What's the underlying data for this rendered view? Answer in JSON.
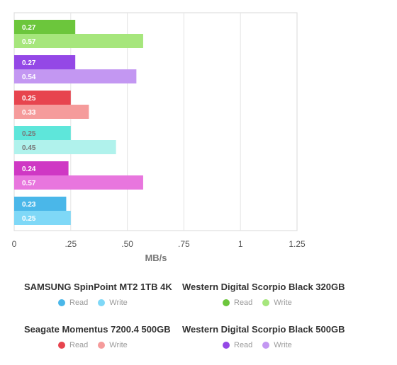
{
  "chart_data": {
    "type": "bar",
    "orientation": "horizontal",
    "xlabel": "MB/s",
    "xlim": [
      0,
      1.25
    ],
    "xticks": [
      "0",
      ".25",
      ".50",
      ".75",
      "1",
      "1.25"
    ],
    "grid": true,
    "groups": [
      {
        "name": "Western Digital Scorpio Black 320GB",
        "read": 0.27,
        "write": 0.57,
        "read_label": "0.27",
        "write_label": "0.57",
        "read_color": "#6cc63c",
        "write_color": "#a6e67c",
        "label_color": "#ffffff"
      },
      {
        "name": "Western Digital Scorpio Black 500GB",
        "read": 0.27,
        "write": 0.54,
        "read_label": "0.27",
        "write_label": "0.54",
        "read_color": "#9448e6",
        "write_color": "#c397f2",
        "label_color": "#ffffff"
      },
      {
        "name": "Seagate Momentus 7200.4 500GB",
        "read": 0.25,
        "write": 0.33,
        "read_label": "0.25",
        "write_label": "0.33",
        "read_color": "#e7444e",
        "write_color": "#f59b9b",
        "label_color": "#ffffff"
      },
      {
        "name": "",
        "read": 0.25,
        "write": 0.45,
        "read_label": "0.25",
        "write_label": "0.45",
        "read_color": "#5ee6da",
        "write_color": "#b0f2ec",
        "label_color": "#777777"
      },
      {
        "name": "",
        "read": 0.24,
        "write": 0.57,
        "read_label": "0.24",
        "write_label": "0.57",
        "read_color": "#cf38c4",
        "write_color": "#e876de",
        "label_color": "#ffffff"
      },
      {
        "name": "SAMSUNG SpinPoint MT2 1TB 4K",
        "read": 0.23,
        "write": 0.25,
        "read_label": "0.23",
        "write_label": "0.25",
        "read_color": "#4ab7e9",
        "write_color": "#7fd8f7",
        "label_color": "#ffffff"
      }
    ]
  },
  "legend": [
    {
      "title": "SAMSUNG SpinPoint MT2 1TB 4K",
      "read_label": "Read",
      "write_label": "Write",
      "read_color": "#4ab7e9",
      "write_color": "#7fd8f7"
    },
    {
      "title": "Western Digital Scorpio Black 320GB",
      "read_label": "Read",
      "write_label": "Write",
      "read_color": "#6cc63c",
      "write_color": "#a6e67c"
    },
    {
      "title": "Seagate Momentus 7200.4 500GB",
      "read_label": "Read",
      "write_label": "Write",
      "read_color": "#e7444e",
      "write_color": "#f59b9b"
    },
    {
      "title": "Western Digital Scorpio Black 500GB",
      "read_label": "Read",
      "write_label": "Write",
      "read_color": "#9448e6",
      "write_color": "#c397f2"
    }
  ]
}
